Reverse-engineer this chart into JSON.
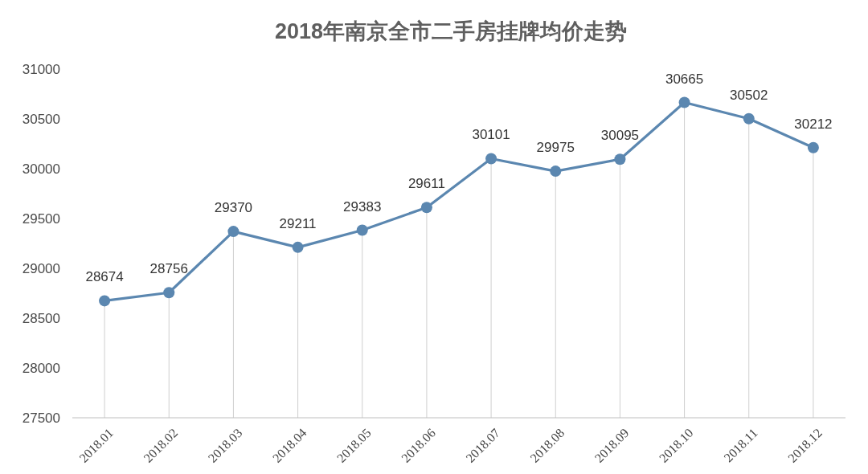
{
  "chart_data": {
    "type": "line",
    "title": "2018年南京全市二手房挂牌均价走势",
    "categories": [
      "2018.01",
      "2018.02",
      "2018.03",
      "2018.04",
      "2018.05",
      "2018.06",
      "2018.07",
      "2018.08",
      "2018.09",
      "2018.10",
      "2018.11",
      "2018.12"
    ],
    "series": [
      {
        "color": "#5b87b0",
        "values": [
          28674,
          28756,
          29370,
          29211,
          29383,
          29611,
          30101,
          29975,
          30095,
          30665,
          30502,
          30212
        ]
      }
    ],
    "ylim": [
      27500,
      31000
    ],
    "yticks": [
      27500,
      28000,
      28500,
      29000,
      29500,
      30000,
      30500,
      31000
    ],
    "grid": "x",
    "marker": "circle",
    "line_style": "solid",
    "data_labels": true
  }
}
